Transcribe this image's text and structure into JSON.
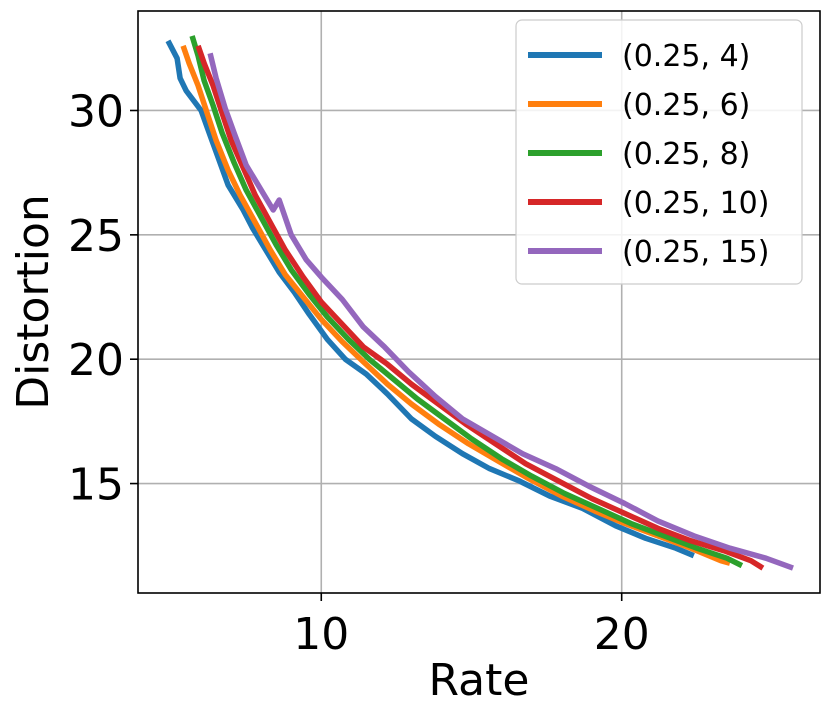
{
  "chart_data": {
    "type": "line",
    "title": "",
    "xlabel": "Rate",
    "ylabel": "Distortion",
    "xlim": [
      3.9,
      26.6
    ],
    "ylim": [
      10.6,
      34.0
    ],
    "xticks": [
      10,
      20
    ],
    "xtick_labels": [
      "10",
      "20"
    ],
    "yticks": [
      15,
      20,
      25,
      30
    ],
    "ytick_labels": [
      "15",
      "20",
      "25",
      "30"
    ],
    "grid": true,
    "legend_position": "top-right",
    "series": [
      {
        "name": "(0.25, 4)",
        "color": "#1f77b4",
        "x": [
          4.9,
          5.2,
          5.3,
          5.5,
          6.0,
          6.3,
          6.6,
          6.9,
          7.4,
          7.7,
          8.1,
          8.6,
          9.1,
          9.6,
          10.2,
          10.8,
          11.5,
          12.2,
          13.0,
          13.8,
          14.7,
          15.6,
          16.6,
          17.6,
          18.7,
          19.8,
          20.8,
          21.8,
          22.4
        ],
        "y": [
          32.8,
          32.1,
          31.3,
          30.8,
          30.0,
          29.0,
          28.0,
          27.0,
          26.0,
          25.3,
          24.5,
          23.5,
          22.7,
          21.8,
          20.8,
          20.0,
          19.4,
          18.6,
          17.6,
          16.9,
          16.2,
          15.6,
          15.1,
          14.5,
          14.0,
          13.3,
          12.8,
          12.4,
          12.1
        ]
      },
      {
        "name": "(0.25, 6)",
        "color": "#ff7f0e",
        "x": [
          5.4,
          5.6,
          5.9,
          6.2,
          6.5,
          6.9,
          7.3,
          7.8,
          8.3,
          8.8,
          9.4,
          10.0,
          10.7,
          11.4,
          12.2,
          13.0,
          13.9,
          14.9,
          15.9,
          16.9,
          18.0,
          19.1,
          20.1,
          21.2,
          22.3,
          23.3,
          23.6
        ],
        "y": [
          32.6,
          31.9,
          31.0,
          29.9,
          28.8,
          27.6,
          26.6,
          25.5,
          24.4,
          23.4,
          22.5,
          21.6,
          20.7,
          19.9,
          19.0,
          18.2,
          17.4,
          16.6,
          15.9,
          15.2,
          14.5,
          13.9,
          13.4,
          12.9,
          12.4,
          11.9,
          11.8
        ]
      },
      {
        "name": "(0.25, 8)",
        "color": "#2ca02c",
        "x": [
          5.7,
          5.9,
          6.1,
          6.4,
          6.7,
          7.1,
          7.5,
          8.0,
          8.5,
          9.0,
          9.6,
          10.2,
          10.9,
          11.6,
          12.4,
          13.2,
          14.1,
          15.0,
          16.0,
          17.0,
          18.1,
          19.2,
          20.3,
          21.4,
          22.5,
          23.5,
          24.0
        ],
        "y": [
          33.0,
          32.2,
          31.2,
          30.2,
          29.1,
          27.9,
          26.8,
          25.7,
          24.6,
          23.6,
          22.6,
          21.7,
          20.8,
          20.0,
          19.2,
          18.4,
          17.6,
          16.8,
          16.0,
          15.3,
          14.6,
          14.0,
          13.4,
          12.9,
          12.4,
          12.0,
          11.7
        ]
      },
      {
        "name": "(0.25, 10)",
        "color": "#d62728",
        "x": [
          5.9,
          6.1,
          6.4,
          6.7,
          7.0,
          7.4,
          7.8,
          8.3,
          8.8,
          9.4,
          10.0,
          10.7,
          11.4,
          12.2,
          13.0,
          13.9,
          14.8,
          15.8,
          16.8,
          17.9,
          19.0,
          20.1,
          21.2,
          22.3,
          23.4,
          24.3,
          24.7
        ],
        "y": [
          32.6,
          31.9,
          31.0,
          29.9,
          28.8,
          27.7,
          26.6,
          25.5,
          24.4,
          23.3,
          22.3,
          21.4,
          20.5,
          19.8,
          19.0,
          18.2,
          17.4,
          16.6,
          15.8,
          15.1,
          14.4,
          13.8,
          13.2,
          12.7,
          12.3,
          11.9,
          11.6
        ]
      },
      {
        "name": "(0.25, 15)",
        "color": "#9467bd",
        "x": [
          6.3,
          6.5,
          6.8,
          7.1,
          7.5,
          7.9,
          8.4,
          8.6,
          9.0,
          9.5,
          10.0,
          10.7,
          11.4,
          12.1,
          12.9,
          13.8,
          14.7,
          15.7,
          16.7,
          17.8,
          18.9,
          20.1,
          21.2,
          22.4,
          23.6,
          24.8,
          25.7
        ],
        "y": [
          32.3,
          31.3,
          30.1,
          29.1,
          27.8,
          27.0,
          26.0,
          26.4,
          25.0,
          24.0,
          23.3,
          22.4,
          21.3,
          20.5,
          19.5,
          18.5,
          17.6,
          16.9,
          16.2,
          15.6,
          14.9,
          14.2,
          13.5,
          12.9,
          12.4,
          12.0,
          11.6
        ]
      }
    ]
  }
}
